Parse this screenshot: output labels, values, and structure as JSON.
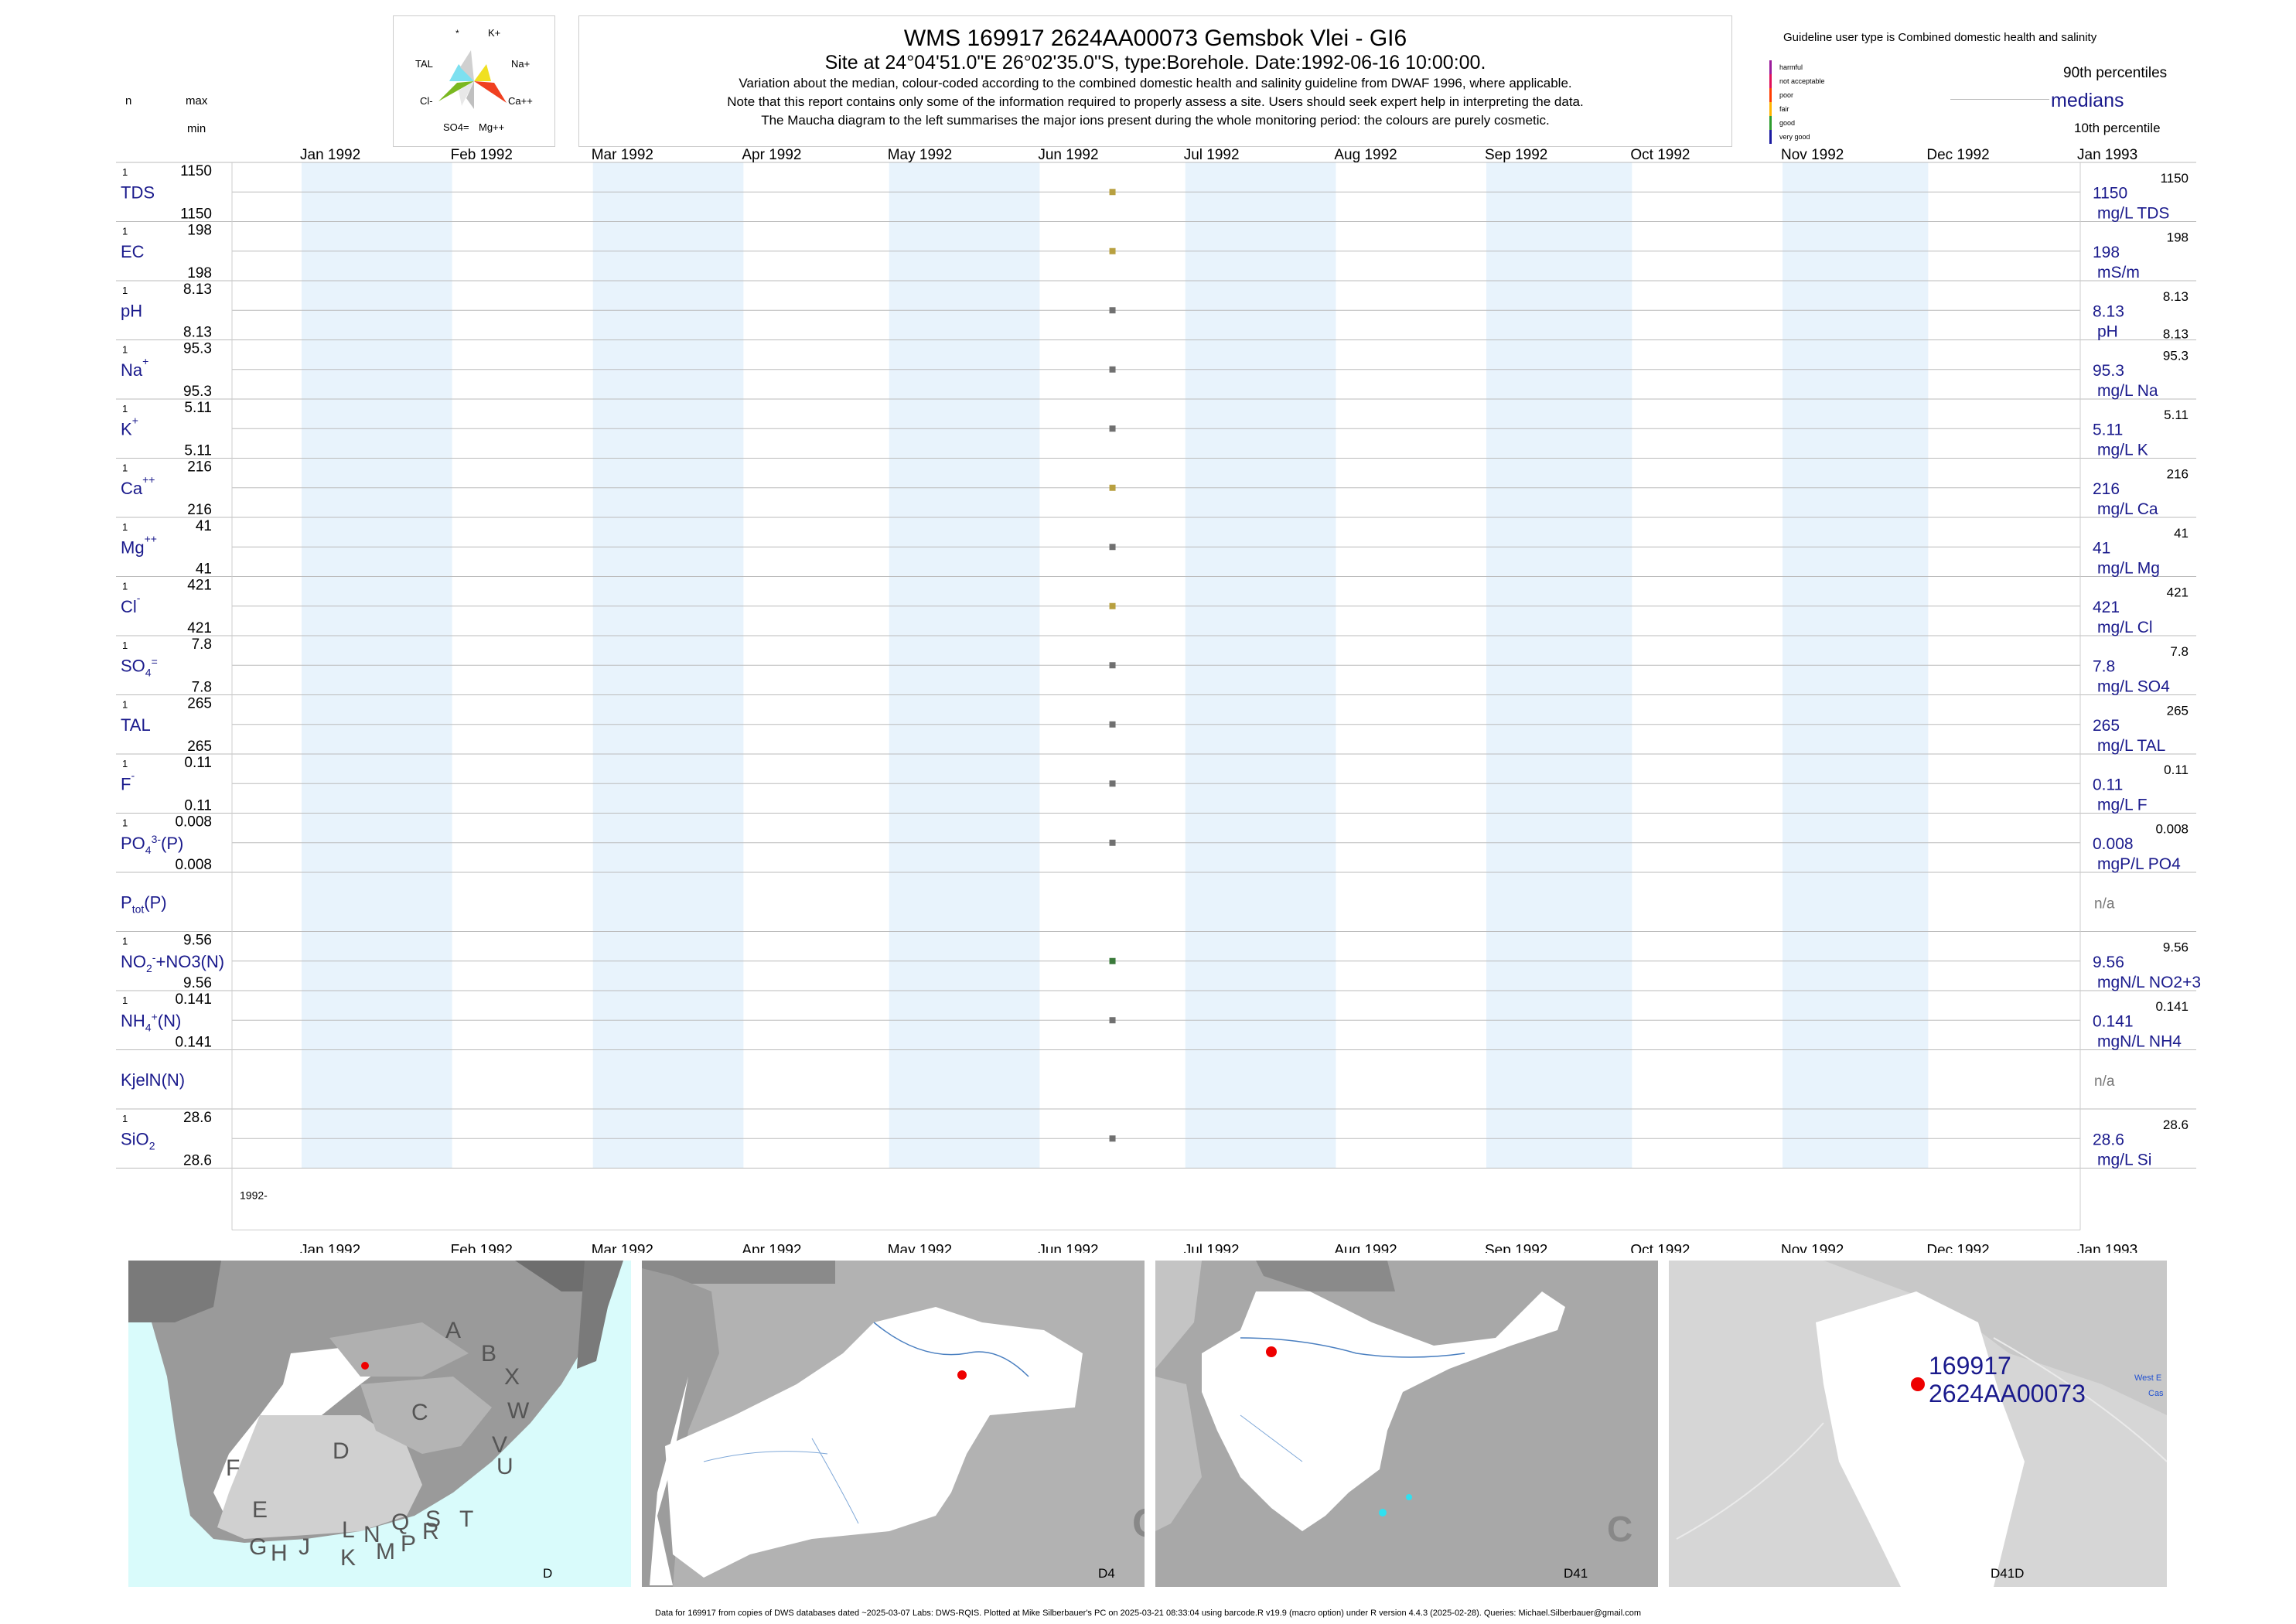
{
  "header": {
    "title": "WMS 169917 2624AA00073 Gemsbok Vlei - GI6",
    "subtitle": "Site at 24°04'51.0\"E 26°02'35.0\"S, type:Borehole. Date:1992-06-16 10:00:00.",
    "line1": "Variation about the median,  colour-coded according to the combined domestic health and salinity guideline from DWAF 1996, where applicable.",
    "line2": "Note that this report contains only some of the information required to properly assess a site. Users should seek expert help in interpreting the data.",
    "line3": "The Maucha diagram to the left summarises the major ions present during the whole monitoring period: the colours are purely cosmetic."
  },
  "maucha": {
    "labels": [
      "*",
      "K+",
      "TAL",
      "Na+",
      "Cl-",
      "Ca++",
      "SO4=",
      "Mg++"
    ]
  },
  "legend": {
    "title": "Guideline user type is Combined domestic health and salinity",
    "categories": [
      {
        "label": "harmful",
        "color": "#9b1c9b"
      },
      {
        "label": "not acceptable",
        "color": "#e0105a"
      },
      {
        "label": "poor",
        "color": "#ff3d00"
      },
      {
        "label": "fair",
        "color": "#ffb300"
      },
      {
        "label": "good",
        "color": "#2e9b2e"
      },
      {
        "label": "very good",
        "color": "#1a1aa0"
      }
    ],
    "p90": "90th percentiles",
    "medians": "medians",
    "p10": "10th percentile"
  },
  "left_headers": {
    "n": "n",
    "max": "max",
    "min": "min"
  },
  "months": [
    "Jan 1992",
    "Feb 1992",
    "Mar 1992",
    "Apr 1992",
    "May 1992",
    "Jun 1992",
    "Jul 1992",
    "Aug 1992",
    "Sep 1992",
    "Oct 1992",
    "Nov 1992",
    "Dec 1992",
    "Jan 1993"
  ],
  "year_label": "1992-",
  "chart_data": {
    "type": "scatter",
    "x_range": [
      "1992-01-01",
      "1993-01-01"
    ],
    "sample_date": "1992-06-16",
    "series": [
      {
        "name": "TDS",
        "sup": "",
        "sub": "",
        "n": "1",
        "max": "1150",
        "min": "1150",
        "value": "1150",
        "unit": "mg/L TDS",
        "color": "#b8a040"
      },
      {
        "name": "EC",
        "sup": "",
        "sub": "",
        "n": "1",
        "max": "198",
        "min": "198",
        "value": "198",
        "unit": "mS/m",
        "color": "#b8a040"
      },
      {
        "name": "pH",
        "sup": "",
        "sub": "",
        "n": "1",
        "max": "8.13",
        "min": "8.13",
        "value": "8.13",
        "unit": "pH",
        "color": "#707070"
      },
      {
        "name": "Na",
        "sup": "+",
        "sub": "",
        "n": "1",
        "max": "95.3",
        "min": "95.3",
        "value": "95.3",
        "unit": "mg/L Na",
        "color": "#707070"
      },
      {
        "name": "K",
        "sup": "+",
        "sub": "",
        "n": "1",
        "max": "5.11",
        "min": "5.11",
        "value": "5.11",
        "unit": "mg/L K",
        "color": "#707070"
      },
      {
        "name": "Ca",
        "sup": "++",
        "sub": "",
        "n": "1",
        "max": "216",
        "min": "216",
        "value": "216",
        "unit": "mg/L Ca",
        "color": "#b8a040"
      },
      {
        "name": "Mg",
        "sup": "++",
        "sub": "",
        "n": "1",
        "max": "41",
        "min": "41",
        "value": "41",
        "unit": "mg/L Mg",
        "color": "#707070"
      },
      {
        "name": "Cl",
        "sup": "-",
        "sub": "",
        "n": "1",
        "max": "421",
        "min": "421",
        "value": "421",
        "unit": "mg/L Cl",
        "color": "#b8a040"
      },
      {
        "name": "SO",
        "sup": "=",
        "sub": "4",
        "n": "1",
        "max": "7.8",
        "min": "7.8",
        "value": "7.8",
        "unit": "mg/L SO4",
        "color": "#707070"
      },
      {
        "name": "TAL",
        "sup": "",
        "sub": "",
        "n": "1",
        "max": "265",
        "min": "265",
        "value": "265",
        "unit": "mg/L TAL",
        "color": "#707070"
      },
      {
        "name": "F",
        "sup": "-",
        "sub": "",
        "n": "1",
        "max": "0.11",
        "min": "0.11",
        "value": "0.11",
        "unit": "mg/L F",
        "color": "#707070"
      },
      {
        "name": "PO",
        "sup": "3-",
        "sub": "4",
        "suffix": "(P)",
        "n": "1",
        "max": "0.008",
        "min": "0.008",
        "value": "0.008",
        "unit": "mgP/L PO4",
        "color": "#707070"
      },
      {
        "name": "P",
        "sup": "",
        "sub": "tot",
        "suffix": "(P)",
        "n": "",
        "max": "",
        "min": "",
        "value": "n/a",
        "unit": "",
        "color": ""
      },
      {
        "name": "NO",
        "sup": "-",
        "sub": "2",
        "suffix": "+NO3(N)",
        "n": "1",
        "max": "9.56",
        "min": "9.56",
        "value": "9.56",
        "unit": "mgN/L NO2+3",
        "color": "#3a7a3a"
      },
      {
        "name": "NH",
        "sup": "+",
        "sub": "4",
        "suffix": "(N)",
        "n": "1",
        "max": "0.141",
        "min": "0.141",
        "value": "0.141",
        "unit": "mgN/L NH4",
        "color": "#707070"
      },
      {
        "name": "KjelN(N)",
        "sup": "",
        "sub": "",
        "n": "",
        "max": "",
        "min": "",
        "value": "n/a",
        "unit": "",
        "color": ""
      },
      {
        "name": "SiO",
        "sup": "",
        "sub": "2",
        "n": "1",
        "max": "28.6",
        "min": "28.6",
        "value": "28.6",
        "unit": "mg/L Si",
        "color": "#707070"
      }
    ]
  },
  "maps": [
    {
      "label": "D",
      "regions": [
        "A",
        "B",
        "X",
        "C",
        "W",
        "V",
        "U",
        "T",
        "D",
        "F",
        "E",
        "G",
        "H",
        "J",
        "K",
        "L",
        "M",
        "N",
        "P",
        "Q",
        "R",
        "S"
      ]
    },
    {
      "label": "D4",
      "corner": "C"
    },
    {
      "label": "D41",
      "corner": "C"
    },
    {
      "label": "D41D",
      "site_id": "169917",
      "site_code": "2624AA00073",
      "side_label1": "West E",
      "side_label2": "Cas"
    }
  ],
  "footer": "Data for 169917 from copies of DWS databases dated ~2025-03-07 Labs: DWS-RQIS. Plotted at Mike Silberbauer's PC on 2025-03-21 08:33:04 using barcode.R v19.9 (macro option) under R version 4.4.3 (2025-02-28). Queries: Michael.Silberbauer@gmail.com"
}
